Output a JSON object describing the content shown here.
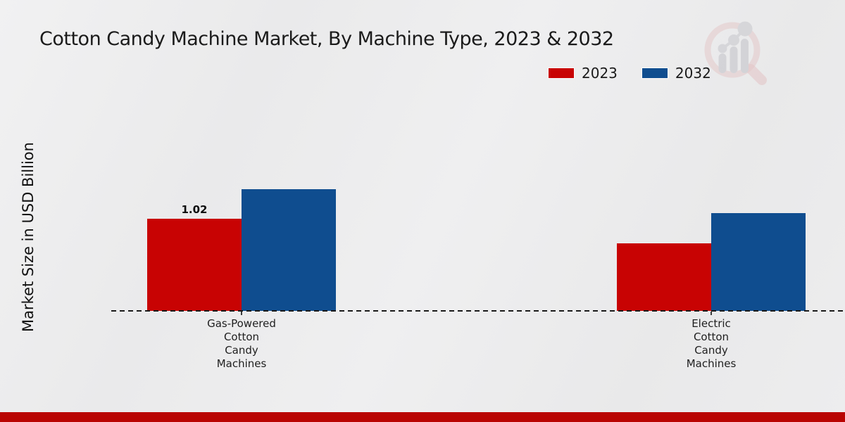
{
  "header": {
    "title": "Cotton Candy Machine Market, By Machine Type, 2023 & 2032"
  },
  "legend": {
    "items": [
      {
        "label": "2023",
        "color": "#c80303"
      },
      {
        "label": "2032",
        "color": "#0f4d8f"
      }
    ]
  },
  "chart_data": {
    "type": "bar",
    "title": "Cotton Candy Machine Market, By Machine Type, 2023 & 2032",
    "ylabel": "Market Size in USD Billion",
    "categories": [
      "Gas-Powered Cotton Candy Machines",
      "Electric Cotton Candy Machines"
    ],
    "category_label_lines": [
      [
        "Gas-Powered",
        "Cotton",
        "Candy",
        "Machines"
      ],
      [
        "Electric",
        "Cotton",
        "Candy",
        "Machines"
      ]
    ],
    "series": [
      {
        "name": "2023",
        "color": "#c80303",
        "values": [
          1.02,
          0.75
        ]
      },
      {
        "name": "2032",
        "color": "#0f4d8f",
        "values": [
          1.35,
          1.08
        ]
      }
    ],
    "value_labels": [
      {
        "series_index": 0,
        "category_index": 0,
        "text": "1.02"
      }
    ],
    "ylim": [
      0,
      1.6
    ],
    "grid": false,
    "y_axis_ticks_visible": false,
    "baseline_style": "dashed",
    "legend_position": "top-right"
  },
  "watermark": {
    "name": "magnifier-bar-chart-logo"
  },
  "footer": {
    "bar_color": "#b90402"
  }
}
